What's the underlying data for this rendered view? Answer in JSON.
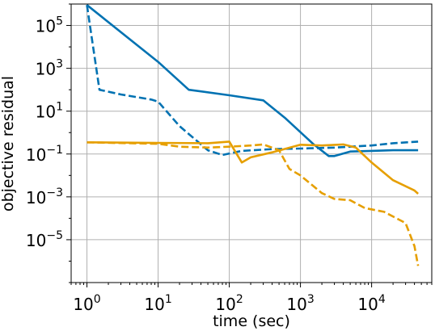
{
  "chart_data": {
    "type": "line",
    "title": "",
    "xlabel": "time (sec)",
    "ylabel": "objective residual",
    "xscale": "log",
    "yscale": "log",
    "xlim": [
      0.6,
      70000
    ],
    "ylim": [
      1e-07,
      1000000.0
    ],
    "grid": true,
    "legend": "none",
    "x_ticks": [
      {
        "base": "10",
        "exp": "0",
        "value": 1
      },
      {
        "base": "10",
        "exp": "1",
        "value": 10
      },
      {
        "base": "10",
        "exp": "2",
        "value": 100
      },
      {
        "base": "10",
        "exp": "3",
        "value": 1000
      },
      {
        "base": "10",
        "exp": "4",
        "value": 10000
      }
    ],
    "y_ticks": [
      {
        "base": "10",
        "exp": "5",
        "value": 100000
      },
      {
        "base": "10",
        "exp": "3",
        "value": 1000
      },
      {
        "base": "10",
        "exp": "1",
        "value": 10
      },
      {
        "base": "10",
        "exp": "−1",
        "value": 0.1
      },
      {
        "base": "10",
        "exp": "−3",
        "value": 0.001
      },
      {
        "base": "10",
        "exp": "−5",
        "value": 1e-05
      }
    ],
    "series": [
      {
        "color": "#0072b2",
        "style": "solid",
        "points": [
          [
            1,
            900000
          ],
          [
            10,
            2000
          ],
          [
            27,
            100
          ],
          [
            100,
            55
          ],
          [
            300,
            32
          ],
          [
            600,
            5
          ],
          [
            1500,
            0.3
          ],
          [
            2500,
            0.08
          ],
          [
            3000,
            0.08
          ],
          [
            5000,
            0.13
          ],
          [
            10000,
            0.14
          ],
          [
            20000,
            0.15
          ],
          [
            45000,
            0.15
          ]
        ]
      },
      {
        "color": "#0072b2",
        "style": "dashed",
        "points": [
          [
            1,
            900000
          ],
          [
            1.5,
            100
          ],
          [
            3,
            60
          ],
          [
            8,
            35
          ],
          [
            10,
            28
          ],
          [
            20,
            2
          ],
          [
            50,
            0.15
          ],
          [
            80,
            0.09
          ],
          [
            150,
            0.14
          ],
          [
            400,
            0.17
          ],
          [
            1000,
            0.18
          ],
          [
            3000,
            0.2
          ],
          [
            10000,
            0.25
          ],
          [
            20000,
            0.32
          ],
          [
            45000,
            0.38
          ]
        ]
      },
      {
        "color": "#e69f00",
        "style": "solid",
        "points": [
          [
            1,
            0.35
          ],
          [
            10,
            0.33
          ],
          [
            50,
            0.32
          ],
          [
            100,
            0.38
          ],
          [
            150,
            0.04
          ],
          [
            200,
            0.07
          ],
          [
            400,
            0.12
          ],
          [
            1000,
            0.27
          ],
          [
            2000,
            0.25
          ],
          [
            4000,
            0.28
          ],
          [
            6000,
            0.2
          ],
          [
            10000,
            0.04
          ],
          [
            20000,
            0.006
          ],
          [
            40000,
            0.002
          ],
          [
            45000,
            0.0014
          ]
        ]
      },
      {
        "color": "#e69f00",
        "style": "dashed",
        "points": [
          [
            1,
            0.35
          ],
          [
            10,
            0.3
          ],
          [
            20,
            0.22
          ],
          [
            50,
            0.2
          ],
          [
            100,
            0.22
          ],
          [
            200,
            0.25
          ],
          [
            300,
            0.28
          ],
          [
            500,
            0.15
          ],
          [
            700,
            0.02
          ],
          [
            1000,
            0.01
          ],
          [
            2000,
            0.0015
          ],
          [
            3000,
            0.0008
          ],
          [
            5000,
            0.0007
          ],
          [
            8000,
            0.0003
          ],
          [
            15000,
            0.0002
          ],
          [
            30000,
            6e-05
          ],
          [
            40000,
            5e-06
          ],
          [
            45000,
            6e-07
          ]
        ]
      }
    ]
  }
}
